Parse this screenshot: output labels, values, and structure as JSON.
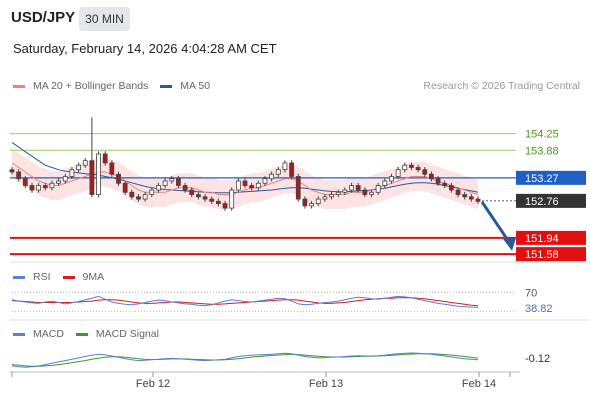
{
  "header": {
    "symbol": "USD/JPY",
    "timeframe": "30 MIN",
    "datetime": "Saturday, February 14, 2026 4:04:28 AM CET",
    "credit": "Research © 2026 Trading Central"
  },
  "colors": {
    "ma20": "#f08080",
    "ma50": "#2a5a9a",
    "band_fill": "#fde3e3",
    "resistance_green": "#9ccc6e",
    "current_blue": "#1f5fc4",
    "support_red": "#e01010",
    "price_dark": "#333333",
    "candle_up": "#ffffff",
    "candle_down": "#a02020",
    "rsi": "#5a7fd8",
    "rsi_ma": "#d02020",
    "macd": "#5a7fd8",
    "macd_signal": "#3a9a2a",
    "arrow": "#2a5a9a"
  },
  "main_legend": [
    {
      "label": "MA 20 + Bollinger Bands",
      "color": "#f08080"
    },
    {
      "label": "MA 50",
      "color": "#2a5a9a"
    }
  ],
  "rsi_legend": [
    {
      "label": "RSI",
      "color": "#5a7fd8"
    },
    {
      "label": "9MA",
      "color": "#d02020"
    }
  ],
  "macd_legend": [
    {
      "label": "MACD",
      "color": "#5a7fd8"
    },
    {
      "label": "MACD Signal",
      "color": "#3a9a2a"
    }
  ],
  "chart_data": [
    {
      "type": "candlestick",
      "title": "USD/JPY 30 MIN",
      "ylim": [
        151.45,
        154.95
      ],
      "x_ticks": [
        "Feb 12",
        "Feb 13",
        "Feb 14"
      ],
      "levels": [
        {
          "value": 154.25,
          "label": "154.25",
          "style": "green-line"
        },
        {
          "value": 153.88,
          "label": "153.88",
          "style": "green-line"
        },
        {
          "value": 153.27,
          "label": "153.27",
          "style": "blue-box"
        },
        {
          "value": 152.76,
          "label": "152.76",
          "style": "dark-box"
        },
        {
          "value": 151.94,
          "label": "151.94",
          "style": "red-box"
        },
        {
          "value": 151.58,
          "label": "151.58",
          "style": "red-box"
        }
      ],
      "close_series": [
        153.4,
        153.25,
        153.1,
        153.0,
        153.1,
        153.05,
        153.15,
        153.2,
        153.3,
        153.45,
        153.55,
        153.65,
        152.9,
        153.8,
        153.6,
        153.35,
        153.15,
        152.95,
        152.85,
        152.8,
        152.9,
        153.0,
        153.1,
        153.2,
        153.25,
        153.1,
        153.0,
        152.9,
        152.85,
        152.8,
        152.75,
        152.7,
        152.6,
        153.0,
        153.2,
        153.1,
        153.05,
        153.15,
        153.25,
        153.35,
        153.45,
        153.6,
        153.3,
        152.8,
        152.65,
        152.7,
        152.8,
        152.85,
        152.9,
        152.95,
        153.0,
        153.1,
        153.0,
        152.9,
        152.95,
        153.1,
        153.2,
        153.3,
        153.45,
        153.55,
        153.5,
        153.45,
        153.35,
        153.25,
        153.15,
        153.1,
        153.0,
        152.9,
        152.85,
        152.8,
        152.75
      ],
      "ma20": [
        153.6,
        153.5,
        153.4,
        153.3,
        153.2,
        153.15,
        153.1,
        153.1,
        153.15,
        153.2,
        153.25,
        153.3,
        153.35,
        153.4,
        153.4,
        153.35,
        153.3,
        153.2,
        153.1,
        153.0,
        152.95,
        152.95,
        152.95,
        152.95,
        153.0,
        153.05,
        153.05,
        153.05,
        153.0,
        152.95,
        152.95,
        152.9,
        152.9,
        152.9,
        152.95,
        153.0,
        153.05,
        153.05,
        153.1,
        153.15,
        153.2,
        153.25,
        153.25,
        153.2,
        153.1,
        153.0,
        152.95,
        152.9,
        152.9,
        152.9,
        152.9,
        152.95,
        152.95,
        152.95,
        153.0,
        153.05,
        153.1,
        153.15,
        153.2,
        153.25,
        153.3,
        153.3,
        153.3,
        153.25,
        153.2,
        153.15,
        153.1,
        153.05,
        153.0,
        152.95,
        152.9
      ],
      "ma50": [
        154.05,
        153.95,
        153.85,
        153.75,
        153.65,
        153.55,
        153.5,
        153.45,
        153.42,
        153.4,
        153.38,
        153.36,
        153.35,
        153.33,
        153.3,
        153.27,
        153.24,
        153.2,
        153.16,
        153.12,
        153.08,
        153.05,
        153.03,
        153.01,
        153.0,
        152.99,
        152.98,
        152.97,
        152.96,
        152.95,
        152.94,
        152.94,
        152.94,
        152.94,
        152.95,
        152.96,
        152.97,
        152.98,
        152.99,
        153.0,
        153.02,
        153.04,
        153.05,
        153.05,
        153.04,
        153.02,
        153.0,
        152.98,
        152.97,
        152.96,
        152.96,
        152.97,
        152.98,
        152.99,
        153.0,
        153.02,
        153.04,
        153.07,
        153.1,
        153.13,
        153.15,
        153.16,
        153.16,
        153.15,
        153.13,
        153.1,
        153.07,
        153.04,
        153.01,
        152.98,
        152.95
      ],
      "forecast_arrow": {
        "from": 152.76,
        "to": 151.94
      }
    },
    {
      "type": "line",
      "title": "RSI",
      "ylim": [
        20,
        80
      ],
      "levels": [
        70,
        30
      ],
      "level_labels": [
        "70"
      ],
      "last_value_label": "38.82",
      "series": [
        {
          "name": "RSI",
          "values": [
            55,
            52,
            50,
            48,
            47,
            50,
            52,
            49,
            46,
            48,
            51,
            55,
            58,
            62,
            56,
            50,
            47,
            45,
            44,
            46,
            49,
            52,
            54,
            53,
            50,
            48,
            46,
            45,
            43,
            42,
            44,
            48,
            52,
            55,
            53,
            51,
            50,
            52,
            54,
            56,
            58,
            57,
            52,
            46,
            44,
            45,
            47,
            49,
            50,
            52,
            55,
            58,
            60,
            59,
            57,
            56,
            58,
            60,
            62,
            61,
            59,
            56,
            53,
            50,
            47,
            45,
            43,
            41,
            40,
            39,
            38.82
          ]
        },
        {
          "name": "9MA",
          "values": [
            53,
            52,
            51,
            50,
            49,
            49,
            49,
            49,
            49,
            49,
            50,
            51,
            52,
            54,
            55,
            55,
            54,
            52,
            50,
            48,
            47,
            47,
            48,
            49,
            50,
            50,
            49,
            48,
            47,
            46,
            45,
            45,
            46,
            47,
            48,
            49,
            50,
            51,
            52,
            53,
            54,
            55,
            55,
            54,
            52,
            50,
            48,
            47,
            47,
            48,
            49,
            51,
            53,
            55,
            56,
            57,
            58,
            58,
            59,
            59,
            59,
            58,
            57,
            55,
            53,
            51,
            49,
            47,
            45,
            43,
            42
          ]
        }
      ]
    },
    {
      "type": "line",
      "title": "MACD",
      "ylim": [
        -0.5,
        0.5
      ],
      "last_value_label": "-0.12",
      "series": [
        {
          "name": "MACD",
          "values": [
            -0.35,
            -0.38,
            -0.4,
            -0.38,
            -0.35,
            -0.3,
            -0.25,
            -0.2,
            -0.15,
            -0.1,
            -0.05,
            0.0,
            0.05,
            0.08,
            0.06,
            0.02,
            -0.03,
            -0.08,
            -0.12,
            -0.15,
            -0.14,
            -0.12,
            -0.1,
            -0.08,
            -0.07,
            -0.08,
            -0.1,
            -0.12,
            -0.14,
            -0.15,
            -0.14,
            -0.12,
            -0.1,
            -0.05,
            0.0,
            0.03,
            0.05,
            0.06,
            0.07,
            0.08,
            0.1,
            0.12,
            0.1,
            0.05,
            0.0,
            -0.03,
            -0.05,
            -0.04,
            -0.03,
            -0.02,
            0.0,
            0.02,
            0.03,
            0.02,
            0.02,
            0.03,
            0.05,
            0.08,
            0.1,
            0.12,
            0.13,
            0.12,
            0.1,
            0.08,
            0.05,
            0.02,
            -0.02,
            -0.05,
            -0.08,
            -0.1,
            -0.12
          ]
        },
        {
          "name": "MACD Signal",
          "values": [
            -0.3,
            -0.32,
            -0.35,
            -0.36,
            -0.36,
            -0.35,
            -0.33,
            -0.3,
            -0.27,
            -0.23,
            -0.19,
            -0.15,
            -0.1,
            -0.06,
            -0.03,
            -0.01,
            -0.01,
            -0.03,
            -0.05,
            -0.08,
            -0.1,
            -0.11,
            -0.11,
            -0.1,
            -0.09,
            -0.09,
            -0.09,
            -0.1,
            -0.11,
            -0.12,
            -0.13,
            -0.13,
            -0.12,
            -0.1,
            -0.08,
            -0.05,
            -0.02,
            0.0,
            0.02,
            0.04,
            0.05,
            0.07,
            0.08,
            0.07,
            0.05,
            0.03,
            0.01,
            -0.01,
            -0.02,
            -0.02,
            -0.02,
            -0.01,
            0.0,
            0.01,
            0.01,
            0.02,
            0.03,
            0.04,
            0.06,
            0.08,
            0.09,
            0.1,
            0.1,
            0.1,
            0.09,
            0.07,
            0.05,
            0.03,
            0.0,
            -0.03,
            -0.06
          ]
        }
      ]
    }
  ]
}
